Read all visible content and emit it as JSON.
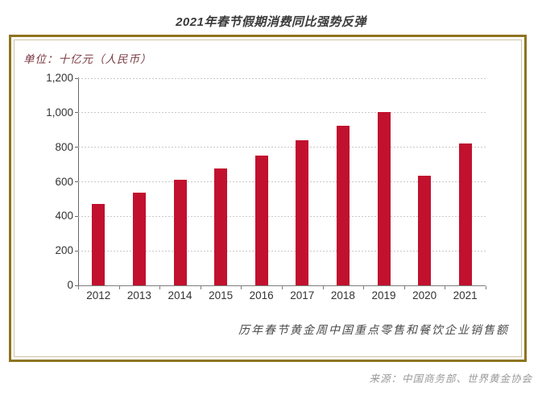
{
  "title": "2021年春节假期消费同比强势反弹",
  "unit_label": "单位：十亿元（人民币）",
  "caption": "历年春节黄金周中国重点零售和餐饮企业销售额",
  "source": "来源：中国商务部、世界黄金协会",
  "colors": {
    "bar": "#c1112e",
    "frame_outer": "#8e741f",
    "frame_inner": "#cdc3a5",
    "gridline": "#c9c9c9",
    "axis": "#666666",
    "title_text": "#3a3a3a",
    "tick_text": "#333333",
    "unit_text": "#7a3a42",
    "caption_text": "#4a4a4a",
    "source_text": "#9a9a9a"
  },
  "chart_data": {
    "type": "bar",
    "title": "2021年春节假期消费同比强势反弹",
    "subtitle": "历年春节黄金周中国重点零售和餐饮企业销售额",
    "categories": [
      "2012",
      "2013",
      "2014",
      "2015",
      "2016",
      "2017",
      "2018",
      "2019",
      "2020",
      "2021"
    ],
    "values": [
      470,
      539,
      610,
      678,
      754,
      840,
      926,
      1005,
      635,
      821
    ],
    "xlabel": "",
    "ylabel": "单位：十亿元（人民币）",
    "ylim": [
      0,
      1200
    ],
    "ytick_step": 200,
    "ytick_labels": [
      "0",
      "200",
      "400",
      "600",
      "800",
      "1,000",
      "1,200"
    ],
    "grid": "horizontal-dashed",
    "legend": "none",
    "bar_color": "#c1112e",
    "source": "来源：中国商务部、世界黄金协会"
  }
}
